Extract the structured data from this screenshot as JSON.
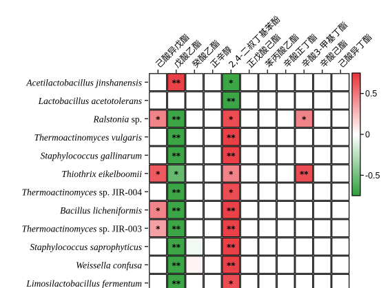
{
  "chart_data": {
    "type": "heatmap",
    "columns": [
      "己酸异戊酯",
      "戊酸乙酯",
      "癸酸乙酯",
      "正辛醇",
      "2,4-二叔丁基苯酚",
      "正戊酸己酯",
      "苯丙酸乙酯",
      "辛酸正丁酯",
      "辛酸3-甲基丁酯",
      "辛酸己酯",
      "己酸异丁酯"
    ],
    "rows": [
      {
        "name": "Acetilactobacillus jinshanensis",
        "italic": "Acetilactobacillus jinshanensis",
        "suffix": ""
      },
      {
        "name": "Lactobacillus acetotolerans",
        "italic": "Lactobacillus acetotolerans",
        "suffix": ""
      },
      {
        "name": "Ralstonia sp.",
        "italic": "Ralstonia",
        "suffix": " sp."
      },
      {
        "name": "Thermoactinomyces vulgaris",
        "italic": "Thermoactinomyces vulgaris",
        "suffix": ""
      },
      {
        "name": "Staphylococcus gallinarum",
        "italic": "Staphylococcus gallinarum",
        "suffix": ""
      },
      {
        "name": "Thiothrix eikelboomii",
        "italic": "Thiothrix eikelboomii",
        "suffix": ""
      },
      {
        "name": "Thermoactinomyces sp. JIR-004",
        "italic": "Thermoactinomyces",
        "suffix": " sp. JIR-004"
      },
      {
        "name": "Bacillus licheniformis",
        "italic": "Bacillus licheniformis",
        "suffix": ""
      },
      {
        "name": "Thermoactinomyces sp. JIR-003",
        "italic": "Thermoactinomyces",
        "suffix": " sp. JIR-003"
      },
      {
        "name": "Staphylococcus saprophyticus",
        "italic": "Staphylococcus saprophyticus",
        "suffix": ""
      },
      {
        "name": "Weissella confusa",
        "italic": "Weissella confusa",
        "suffix": ""
      },
      {
        "name": "Limosilactobacillus fermentum",
        "italic": "Limosilactobacillus fermentum",
        "suffix": ""
      }
    ],
    "values": [
      [
        0,
        0.7,
        0,
        0,
        -0.7,
        0,
        0,
        0,
        0,
        0,
        0
      ],
      [
        0,
        0,
        0,
        0,
        -0.7,
        0,
        0,
        0,
        0,
        0,
        0
      ],
      [
        0.45,
        -0.7,
        0,
        0,
        0.65,
        0,
        0,
        0,
        0.45,
        0,
        0
      ],
      [
        0,
        -0.7,
        0,
        0,
        0.7,
        0,
        0,
        0,
        0,
        0,
        0
      ],
      [
        0,
        -0.7,
        0,
        0,
        0.7,
        0,
        0,
        0,
        0,
        0,
        0
      ],
      [
        0.6,
        -0.55,
        0,
        0,
        0.45,
        0,
        0,
        0,
        0.65,
        0,
        0
      ],
      [
        0,
        -0.7,
        0,
        0,
        0.65,
        0,
        0,
        0,
        0,
        0,
        0
      ],
      [
        0.45,
        -0.7,
        0,
        0,
        0.7,
        0,
        0,
        0,
        0,
        0,
        0
      ],
      [
        0.35,
        -0.7,
        0,
        0,
        0.7,
        0,
        0,
        0,
        0,
        0,
        0
      ],
      [
        0,
        -0.7,
        -0.05,
        0,
        0.7,
        0,
        0,
        0,
        0,
        0,
        0
      ],
      [
        0,
        -0.7,
        0.04,
        0,
        0.7,
        0,
        0,
        0,
        0,
        0,
        0
      ],
      [
        0,
        -0.7,
        0,
        0,
        0.65,
        0,
        0,
        0,
        0,
        0,
        0
      ]
    ],
    "significance": [
      [
        "",
        "**",
        "",
        "",
        "*",
        "",
        "",
        "",
        "",
        "",
        ""
      ],
      [
        "",
        "",
        "",
        "",
        "**",
        "",
        "",
        "",
        "",
        "",
        ""
      ],
      [
        "*",
        "**",
        "",
        "",
        "*",
        "",
        "",
        "",
        "*",
        "",
        ""
      ],
      [
        "",
        "**",
        "",
        "",
        "**",
        "",
        "",
        "",
        "",
        "",
        ""
      ],
      [
        "",
        "**",
        "",
        "",
        "**",
        "",
        "",
        "",
        "",
        "",
        ""
      ],
      [
        "*",
        "*",
        "",
        "",
        "*",
        "",
        "",
        "",
        "**",
        "",
        ""
      ],
      [
        "",
        "**",
        "",
        "",
        "*",
        "",
        "",
        "",
        "",
        "",
        ""
      ],
      [
        "*",
        "**",
        "",
        "",
        "**",
        "",
        "",
        "",
        "",
        "",
        ""
      ],
      [
        "*",
        "**",
        "",
        "",
        "**",
        "",
        "",
        "",
        "",
        "",
        ""
      ],
      [
        "",
        "**",
        "",
        "",
        "**",
        "",
        "",
        "",
        "",
        "",
        ""
      ],
      [
        "",
        "**",
        "",
        "",
        "**",
        "",
        "",
        "",
        "",
        "",
        ""
      ],
      [
        "",
        "**",
        "",
        "",
        "*",
        "",
        "",
        "",
        "",
        "",
        ""
      ]
    ],
    "colorbar": {
      "range": [
        -0.75,
        0.75
      ],
      "ticks": [
        0.5,
        0,
        -0.5
      ],
      "tick_labels": [
        "0.5",
        "0",
        "-0.5"
      ],
      "colors": {
        "negative": "#2ea03a",
        "zero": "#ffffff",
        "positive": "#e8323a"
      }
    }
  }
}
